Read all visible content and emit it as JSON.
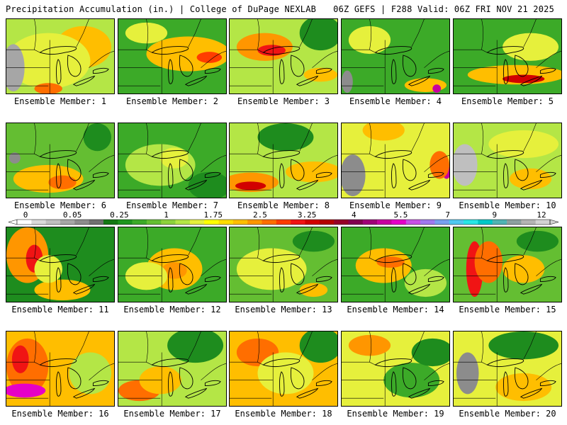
{
  "header": {
    "left_title": "Precipitation Accumulation (in.) | College of DuPage NEXLAB",
    "right_title": "06Z GEFS | F288 Valid: 06Z FRI NOV 21 2025"
  },
  "legend": {
    "tick_labels": [
      "0",
      "0.05",
      "0.25",
      "1",
      "1.75",
      "2.5",
      "3.25",
      "4",
      "5.5",
      "7",
      "9",
      "12"
    ],
    "colors": [
      "#ffffff",
      "#d9d9d9",
      "#bfbfbf",
      "#a6a6a6",
      "#8c8c8c",
      "#707070",
      "#147814",
      "#1e961e",
      "#3caa28",
      "#64be32",
      "#8cd23c",
      "#b4e646",
      "#e6f03c",
      "#ffff00",
      "#ffdc00",
      "#ffbe00",
      "#ff9600",
      "#ff6e00",
      "#ff3c00",
      "#f01414",
      "#d20000",
      "#b40000",
      "#960028",
      "#820050",
      "#a00078",
      "#c800a0",
      "#e600c8",
      "#c850e6",
      "#a078f0",
      "#78a0f0",
      "#50c8f0",
      "#28e6e6",
      "#00c8c8",
      "#50b4b4",
      "#8ca0a0",
      "#b4b4b4",
      "#d2d2d2"
    ]
  },
  "members": [
    {
      "label": "Ensemble Member: 1"
    },
    {
      "label": "Ensemble Member: 2"
    },
    {
      "label": "Ensemble Member: 3"
    },
    {
      "label": "Ensemble Member: 4"
    },
    {
      "label": "Ensemble Member: 5"
    },
    {
      "label": "Ensemble Member: 6"
    },
    {
      "label": "Ensemble Member: 7"
    },
    {
      "label": "Ensemble Member: 8"
    },
    {
      "label": "Ensemble Member: 9"
    },
    {
      "label": "Ensemble Member: 10"
    },
    {
      "label": "Ensemble Member: 11"
    },
    {
      "label": "Ensemble Member: 12"
    },
    {
      "label": "Ensemble Member: 13"
    },
    {
      "label": "Ensemble Member: 14"
    },
    {
      "label": "Ensemble Member: 15"
    },
    {
      "label": "Ensemble Member: 16"
    },
    {
      "label": "Ensemble Member: 17"
    },
    {
      "label": "Ensemble Member: 18"
    },
    {
      "label": "Ensemble Member: 19"
    },
    {
      "label": "Ensemble Member: 20"
    }
  ]
}
